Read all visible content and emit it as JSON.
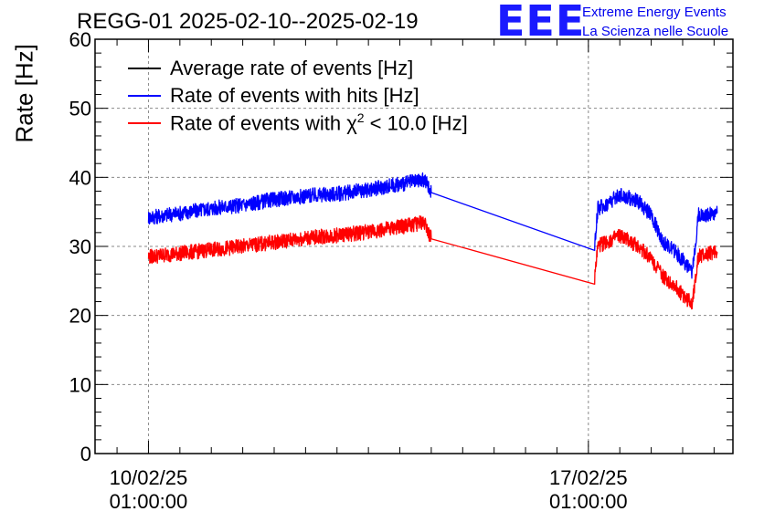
{
  "chart_data": {
    "type": "line",
    "title": "REGG-01 2025-02-10--2025-02-19",
    "ylabel": "Rate [Hz]",
    "xlabel": "",
    "ylim": [
      0,
      60
    ],
    "yticks": [
      "0",
      "10",
      "20",
      "30",
      "40",
      "50",
      "60"
    ],
    "xlim_days": [
      -0.85,
      9.3
    ],
    "xticks": [
      {
        "day": 0,
        "line1": "10/02/25",
        "line2": "01:00:00"
      },
      {
        "day": 7,
        "line1": "17/02/25",
        "line2": "01:00:00"
      }
    ],
    "grid": true,
    "legend_position": "top-left",
    "series": [
      {
        "name": "Average rate of events [Hz]",
        "color": "#000000",
        "x": [],
        "y": []
      },
      {
        "name": "Rate of events with hits [Hz]",
        "color": "#0000ff",
        "x": [
          0.0,
          0.5,
          1.0,
          1.5,
          2.0,
          2.5,
          3.0,
          3.5,
          4.0,
          4.4,
          4.5,
          7.1,
          7.15,
          7.3,
          7.5,
          7.8,
          8.0,
          8.2,
          8.35,
          8.55,
          8.65,
          8.75,
          9.05
        ],
        "y": [
          34.2,
          34.8,
          35.5,
          36.0,
          36.8,
          37.3,
          37.6,
          38.2,
          39.0,
          39.6,
          37.8,
          30.3,
          35.5,
          36.2,
          37.5,
          36.5,
          34.5,
          30.5,
          29.5,
          27.5,
          26.0,
          34.5,
          34.8
        ]
      },
      {
        "name": "Rate of events with χ2 < 10.0 [Hz]",
        "color": "#ff0000",
        "x": [
          0.0,
          0.5,
          1.0,
          1.5,
          2.0,
          2.5,
          3.0,
          3.5,
          4.0,
          4.4,
          4.5,
          7.1,
          7.15,
          7.3,
          7.5,
          7.8,
          8.0,
          8.2,
          8.35,
          8.55,
          8.65,
          8.75,
          9.05
        ],
        "y": [
          28.5,
          29.0,
          29.5,
          30.0,
          30.6,
          31.2,
          31.6,
          32.1,
          32.8,
          33.5,
          31.1,
          25.5,
          30.0,
          30.7,
          31.5,
          30.0,
          28.3,
          25.5,
          24.5,
          22.5,
          21.8,
          28.5,
          29.2
        ]
      }
    ],
    "legend": [
      {
        "label": "Average rate of events [Hz]",
        "color": "#000000"
      },
      {
        "label": "Rate of events with hits [Hz]",
        "color": "#0000ff"
      },
      {
        "label_pre": "Rate of events with χ",
        "label_sup": "2",
        "label_post": " < 10.0 [Hz]",
        "color": "#ff0000"
      }
    ]
  },
  "logo": {
    "mark": "EEE",
    "line1": "Extreme Energy Events",
    "line2": "La Scienza nelle Scuole"
  }
}
